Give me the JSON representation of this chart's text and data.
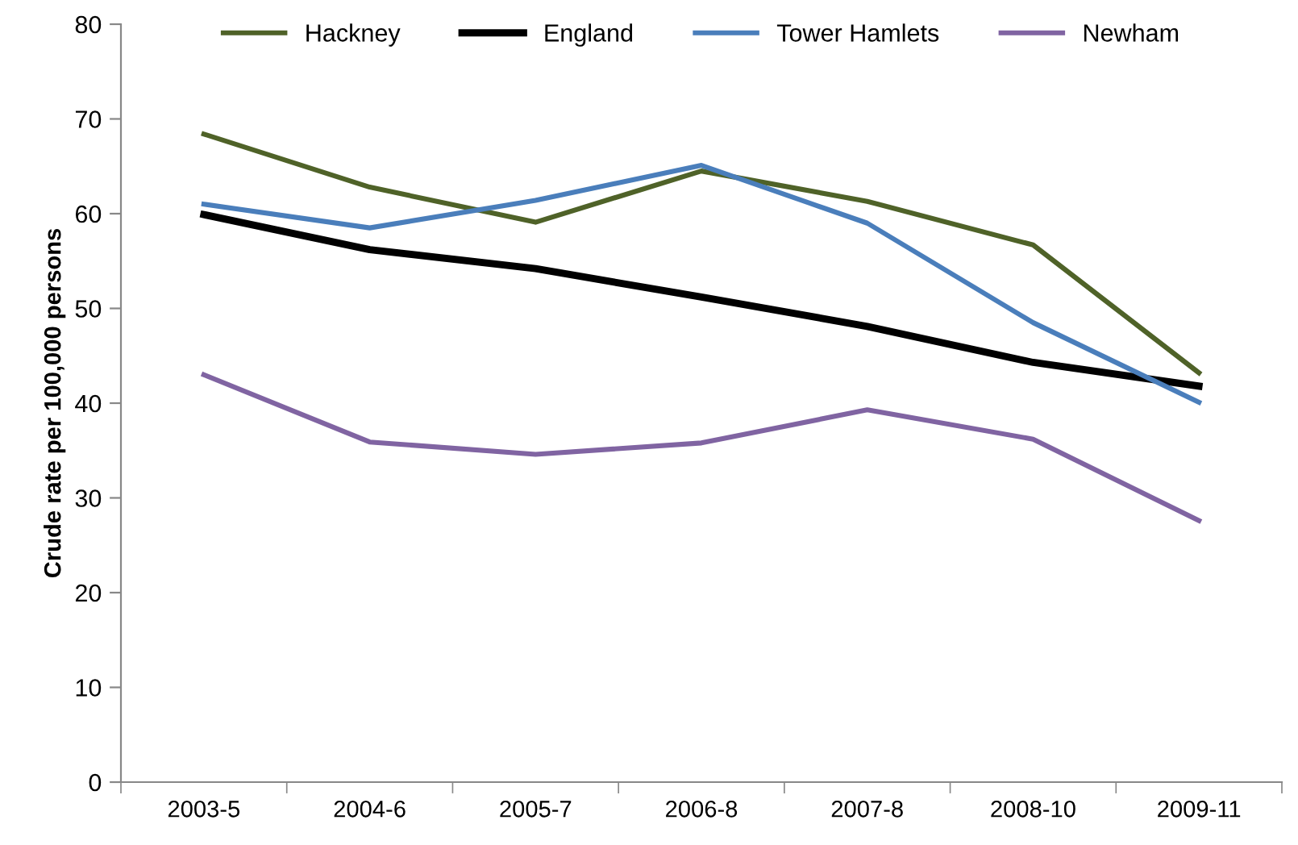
{
  "chart_data": {
    "type": "line",
    "ylabel": "Crude rate per 100,000 persons",
    "categories": [
      "2003-5",
      "2004-6",
      "2005-7",
      "2006-8",
      "2007-8",
      "2008-10",
      "2009-11"
    ],
    "series": [
      {
        "name": "Hackney",
        "color": "#4f6228",
        "values": [
          68.4,
          62.8,
          59.1,
          64.5,
          61.3,
          56.7,
          43.2
        ]
      },
      {
        "name": "England",
        "color": "#000000",
        "values": [
          59.9,
          56.2,
          54.2,
          51.2,
          48.1,
          44.3,
          41.8
        ]
      },
      {
        "name": "Tower Hamlets",
        "color": "#4a7ebb",
        "values": [
          61.0,
          58.5,
          61.4,
          65.1,
          59.0,
          48.5,
          40.1
        ]
      },
      {
        "name": "Newham",
        "color": "#8064a2",
        "values": [
          43.0,
          35.9,
          34.6,
          35.8,
          39.3,
          36.2,
          27.6
        ]
      }
    ],
    "ylim": [
      0,
      80
    ],
    "yticks": [
      0,
      10,
      20,
      30,
      40,
      50,
      60,
      70,
      80
    ],
    "grid": false,
    "legend": "top",
    "marker": "none",
    "line_style": "solid"
  }
}
